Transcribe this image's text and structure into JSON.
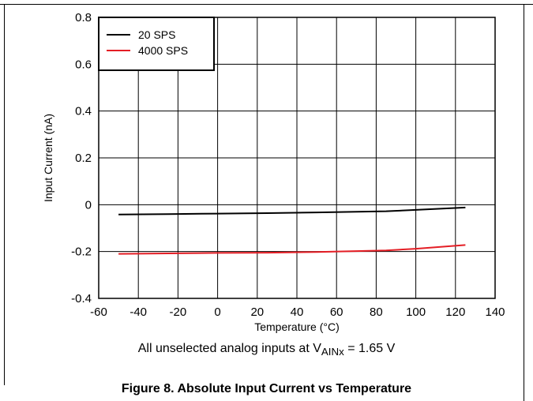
{
  "chart_data": {
    "type": "line",
    "xlabel": "Temperature (°C)",
    "ylabel": "Input Current (nA)",
    "xlim": [
      -60,
      140
    ],
    "ylim": [
      -0.4,
      0.8
    ],
    "xticks": [
      -60,
      -40,
      -20,
      0,
      20,
      40,
      60,
      80,
      100,
      120,
      140
    ],
    "yticks": [
      -0.4,
      -0.2,
      0,
      0.2,
      0.4,
      0.6,
      0.8
    ],
    "xtick_labels": [
      "-60",
      "-40",
      "-20",
      "0",
      "20",
      "40",
      "60",
      "80",
      "100",
      "120",
      "140"
    ],
    "ytick_labels": [
      "-0.4",
      "-0.2",
      "0",
      "0.2",
      "0.4",
      "0.6",
      "0.8"
    ],
    "grid": true,
    "legend_position": "top-left",
    "series": [
      {
        "name": "20 SPS",
        "color": "#000000",
        "x": [
          -50,
          -25,
          0,
          25,
          50,
          85,
          100,
          125
        ],
        "y": [
          -0.042,
          -0.04,
          -0.038,
          -0.036,
          -0.033,
          -0.028,
          -0.022,
          -0.012
        ]
      },
      {
        "name": "4000 SPS",
        "color": "#e41e25",
        "x": [
          -50,
          -25,
          0,
          25,
          50,
          85,
          100,
          125
        ],
        "y": [
          -0.21,
          -0.208,
          -0.206,
          -0.205,
          -0.202,
          -0.195,
          -0.188,
          -0.172
        ]
      }
    ]
  },
  "condition": {
    "prefix": "All unselected analog inputs at V",
    "subscript": "AINx",
    "suffix": " = 1.65 V"
  },
  "caption": "Figure 8. Absolute Input Current vs Temperature"
}
